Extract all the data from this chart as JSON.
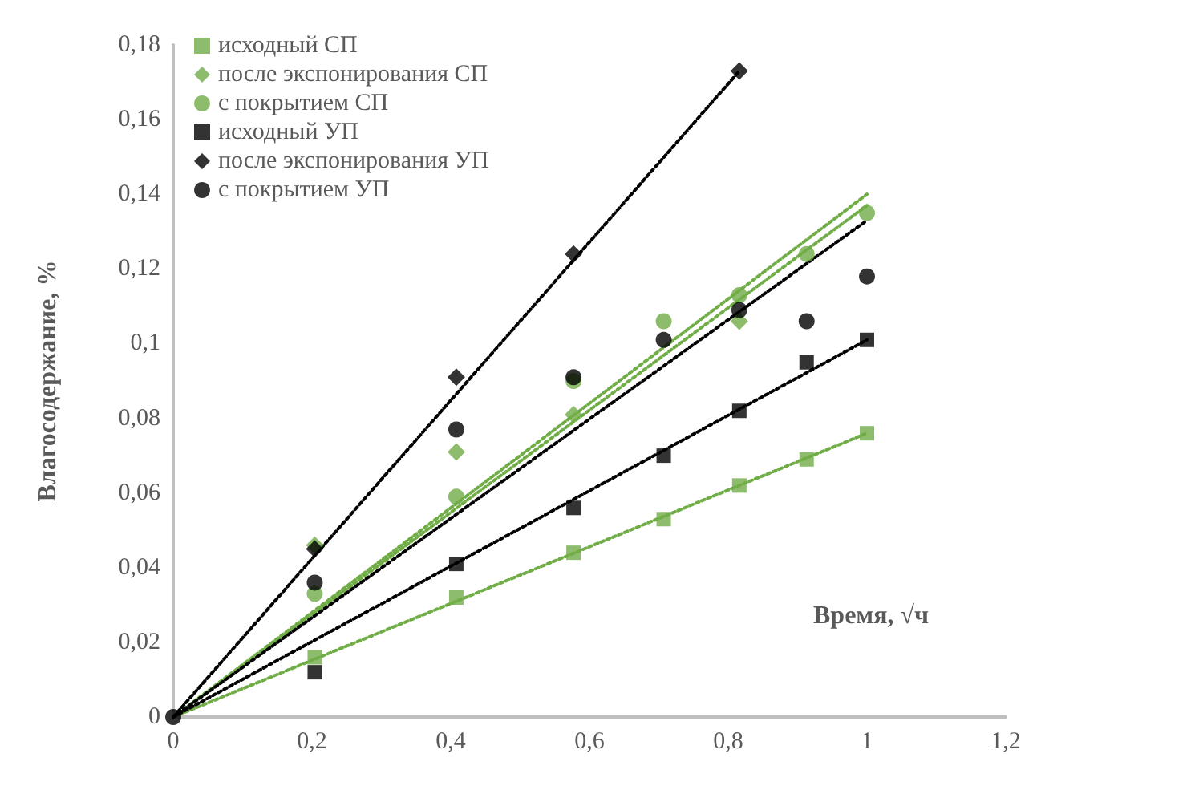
{
  "chart_data": {
    "type": "scatter",
    "xlabel": "Время, √ч",
    "ylabel": "Влагосодержание, %",
    "legend": "top left",
    "grid": false,
    "xlim": [
      0,
      1.2
    ],
    "xticks": [
      0,
      {
        "value": 0.2,
        "label": "0,2"
      },
      {
        "value": 0.4,
        "label": "0,4"
      },
      {
        "value": 0.6,
        "label": "0,6"
      },
      {
        "value": 0.8,
        "label": "0,8"
      },
      1,
      {
        "value": 1.2,
        "label": "1,2"
      }
    ],
    "ylim": [
      0,
      0.18
    ],
    "yticks": [
      0,
      {
        "value": 0.02,
        "label": "0,02"
      },
      {
        "value": 0.04,
        "label": "0,04"
      },
      {
        "value": 0.06,
        "label": "0,06"
      },
      {
        "value": 0.08,
        "label": "0,08"
      },
      {
        "value": 0.1,
        "label": "0,1"
      },
      {
        "value": 0.12,
        "label": "0,12"
      },
      {
        "value": 0.14,
        "label": "0,14"
      },
      {
        "value": 0.16,
        "label": "0,16"
      },
      {
        "value": 0.18,
        "label": "0,18"
      }
    ],
    "series": [
      {
        "name": "исходный СП",
        "color": "#70ad47",
        "marker": "square",
        "x": [
          0.204,
          0.408,
          0.577,
          0.707,
          0.816,
          0.913,
          1
        ],
        "values": [
          0.016,
          0.032,
          0.044,
          0.053,
          0.062,
          0.069,
          0.076
        ]
      },
      {
        "name": "после экспонирования СП",
        "color": "#70ad47",
        "marker": "diamond",
        "x": [
          0.204,
          0.408,
          0.577,
          0.707,
          0.816
        ],
        "values": [
          0.046,
          0.071,
          0.081,
          null,
          0.106
        ]
      },
      {
        "name": "с покрытием СП",
        "color": "#70ad47",
        "marker": "circle",
        "x": [
          0.204,
          0.408,
          0.577,
          0.707,
          0.816,
          0.913,
          1
        ],
        "values": [
          0.033,
          0.059,
          0.09,
          0.106,
          0.113,
          0.124,
          0.135
        ]
      },
      {
        "name": "исходный УП",
        "color": "#000000",
        "marker": "square",
        "x": [
          0.204,
          0.408,
          0.577,
          0.707,
          0.816,
          0.913,
          1
        ],
        "values": [
          0.012,
          0.041,
          0.056,
          0.07,
          0.082,
          0.095,
          0.101
        ]
      },
      {
        "name": "после экспонирования УП",
        "color": "#000000",
        "marker": "diamond",
        "x": [
          0.204,
          0.408,
          0.577,
          0.816
        ],
        "values": [
          0.045,
          0.091,
          0.124,
          0.173
        ]
      },
      {
        "name": "с покрытием УП",
        "color": "#000000",
        "marker": "circle",
        "x": [
          0,
          0.204,
          0.408,
          0.577,
          0.707,
          0.816,
          0.913,
          1
        ],
        "values": [
          0,
          0.036,
          0.077,
          0.091,
          0.101,
          0.109,
          0.106,
          0.118
        ]
      },
      {
        "type": "line",
        "color": "#70ad47",
        "marker": "none",
        "line_style": "dotted",
        "x": [
          0,
          1
        ],
        "values": [
          0,
          0.076
        ]
      },
      {
        "type": "line",
        "color": "#70ad47",
        "marker": "none",
        "line_style": "dotted",
        "x": [
          0,
          1
        ],
        "values": [
          0,
          0.14
        ]
      },
      {
        "type": "line",
        "color": "#70ad47",
        "marker": "none",
        "line_style": "dotted",
        "x": [
          0,
          1
        ],
        "values": [
          0,
          0.137
        ]
      },
      {
        "type": "line",
        "color": "#000000",
        "marker": "none",
        "line_style": "dotted",
        "x": [
          0,
          1
        ],
        "values": [
          0,
          0.101
        ]
      },
      {
        "type": "line",
        "color": "#000000",
        "marker": "none",
        "line_style": "dotted",
        "x": [
          0,
          0.816
        ],
        "values": [
          0,
          0.173
        ]
      },
      {
        "type": "line",
        "color": "#000000",
        "marker": "none",
        "line_style": "dotted",
        "x": [
          0,
          1
        ],
        "values": [
          0,
          0.133
        ]
      }
    ]
  }
}
